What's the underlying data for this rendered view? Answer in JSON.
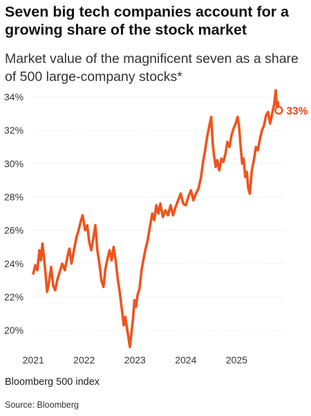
{
  "page": {
    "title": "Seven big tech companies account for a growing share of the stock market",
    "subtitle": "Market value of the magnificent seven as a share of 500 large-company stocks*",
    "note": "Bloomberg 500 index",
    "source": "Source: Bloomberg"
  },
  "colors": {
    "line": "#f0531c",
    "label": "#e8461a",
    "grid": "#d9d9d9",
    "axis_text": "#333333"
  },
  "chart_data": {
    "type": "line",
    "title": "Seven big tech companies account for a growing share of the stock market",
    "subtitle": "Market value of the magnificent seven as a share of 500 large-company stocks*",
    "ylabel": "",
    "xlabel": "",
    "ylim": [
      18.8,
      34.5
    ],
    "y_ticks": [
      20,
      22,
      24,
      26,
      28,
      30,
      32,
      34
    ],
    "y_tick_labels": [
      "20%",
      "22%",
      "24%",
      "26%",
      "28%",
      "30%",
      "32%",
      "34%"
    ],
    "x_ticks": [
      2021,
      2022,
      2023,
      2024,
      2025
    ],
    "x_tick_labels": [
      "2021",
      "2022",
      "2023",
      "2024",
      "2025"
    ],
    "xlim": [
      2020.97,
      2025.92
    ],
    "grid": true,
    "end_label": "33%",
    "series": [
      {
        "values": [
          [
            2021.0,
            23.4
          ],
          [
            2021.04,
            23.9
          ],
          [
            2021.08,
            23.6
          ],
          [
            2021.12,
            24.8
          ],
          [
            2021.15,
            24.2
          ],
          [
            2021.18,
            25.2
          ],
          [
            2021.21,
            24.4
          ],
          [
            2021.24,
            23.4
          ],
          [
            2021.27,
            22.3
          ],
          [
            2021.31,
            22.9
          ],
          [
            2021.35,
            23.8
          ],
          [
            2021.39,
            22.7
          ],
          [
            2021.43,
            22.4
          ],
          [
            2021.47,
            23.0
          ],
          [
            2021.52,
            23.5
          ],
          [
            2021.57,
            24.0
          ],
          [
            2021.62,
            23.6
          ],
          [
            2021.67,
            24.4
          ],
          [
            2021.71,
            24.9
          ],
          [
            2021.75,
            24.0
          ],
          [
            2021.8,
            24.8
          ],
          [
            2021.85,
            25.6
          ],
          [
            2021.89,
            26.0
          ],
          [
            2021.93,
            26.5
          ],
          [
            2021.97,
            26.9
          ],
          [
            2022.02,
            26.0
          ],
          [
            2022.06,
            26.3
          ],
          [
            2022.1,
            25.3
          ],
          [
            2022.14,
            24.8
          ],
          [
            2022.18,
            25.5
          ],
          [
            2022.22,
            26.3
          ],
          [
            2022.26,
            24.8
          ],
          [
            2022.3,
            24.0
          ],
          [
            2022.34,
            23.0
          ],
          [
            2022.38,
            22.6
          ],
          [
            2022.42,
            23.7
          ],
          [
            2022.46,
            24.3
          ],
          [
            2022.5,
            24.8
          ],
          [
            2022.54,
            24.2
          ],
          [
            2022.58,
            25.0
          ],
          [
            2022.62,
            24.2
          ],
          [
            2022.66,
            23.1
          ],
          [
            2022.7,
            22.3
          ],
          [
            2022.74,
            21.3
          ],
          [
            2022.78,
            20.3
          ],
          [
            2022.81,
            20.8
          ],
          [
            2022.84,
            20.2
          ],
          [
            2022.87,
            19.6
          ],
          [
            2022.9,
            19.0
          ],
          [
            2022.93,
            19.8
          ],
          [
            2022.96,
            20.6
          ],
          [
            2022.99,
            21.8
          ],
          [
            2023.02,
            21.4
          ],
          [
            2023.05,
            22.1
          ],
          [
            2023.09,
            22.5
          ],
          [
            2023.13,
            23.6
          ],
          [
            2023.17,
            24.3
          ],
          [
            2023.21,
            24.9
          ],
          [
            2023.25,
            25.4
          ],
          [
            2023.3,
            26.3
          ],
          [
            2023.34,
            27.0
          ],
          [
            2023.38,
            26.6
          ],
          [
            2023.42,
            27.5
          ],
          [
            2023.46,
            27.0
          ],
          [
            2023.5,
            27.6
          ],
          [
            2023.55,
            26.8
          ],
          [
            2023.6,
            27.2
          ],
          [
            2023.65,
            26.9
          ],
          [
            2023.7,
            27.5
          ],
          [
            2023.75,
            26.9
          ],
          [
            2023.8,
            27.4
          ],
          [
            2023.85,
            27.8
          ],
          [
            2023.9,
            28.2
          ],
          [
            2023.95,
            27.6
          ],
          [
            2024.0,
            27.5
          ],
          [
            2024.05,
            28.0
          ],
          [
            2024.1,
            28.4
          ],
          [
            2024.15,
            27.8
          ],
          [
            2024.2,
            28.2
          ],
          [
            2024.25,
            28.5
          ],
          [
            2024.3,
            29.2
          ],
          [
            2024.34,
            30.1
          ],
          [
            2024.38,
            30.8
          ],
          [
            2024.42,
            31.6
          ],
          [
            2024.46,
            32.2
          ],
          [
            2024.5,
            32.8
          ],
          [
            2024.53,
            31.2
          ],
          [
            2024.56,
            30.4
          ],
          [
            2024.59,
            29.8
          ],
          [
            2024.62,
            30.2
          ],
          [
            2024.66,
            29.6
          ],
          [
            2024.7,
            30.3
          ],
          [
            2024.74,
            30.1
          ],
          [
            2024.78,
            30.6
          ],
          [
            2024.82,
            31.3
          ],
          [
            2024.86,
            31.0
          ],
          [
            2024.9,
            31.7
          ],
          [
            2024.94,
            32.1
          ],
          [
            2024.98,
            32.4
          ],
          [
            2025.02,
            32.8
          ],
          [
            2025.05,
            32.2
          ],
          [
            2025.08,
            31.0
          ],
          [
            2025.11,
            30.0
          ],
          [
            2025.14,
            30.3
          ],
          [
            2025.17,
            29.2
          ],
          [
            2025.2,
            29.5
          ],
          [
            2025.23,
            28.5
          ],
          [
            2025.26,
            28.2
          ],
          [
            2025.3,
            29.6
          ],
          [
            2025.34,
            30.2
          ],
          [
            2025.38,
            31.0
          ],
          [
            2025.42,
            30.8
          ],
          [
            2025.46,
            31.5
          ],
          [
            2025.5,
            32.0
          ],
          [
            2025.54,
            32.3
          ],
          [
            2025.58,
            32.9
          ],
          [
            2025.62,
            33.1
          ],
          [
            2025.66,
            32.4
          ],
          [
            2025.7,
            33.0
          ],
          [
            2025.74,
            33.6
          ],
          [
            2025.77,
            34.4
          ],
          [
            2025.79,
            33.4
          ],
          [
            2025.81,
            33.7
          ],
          [
            2025.83,
            33.2
          ]
        ]
      }
    ]
  }
}
